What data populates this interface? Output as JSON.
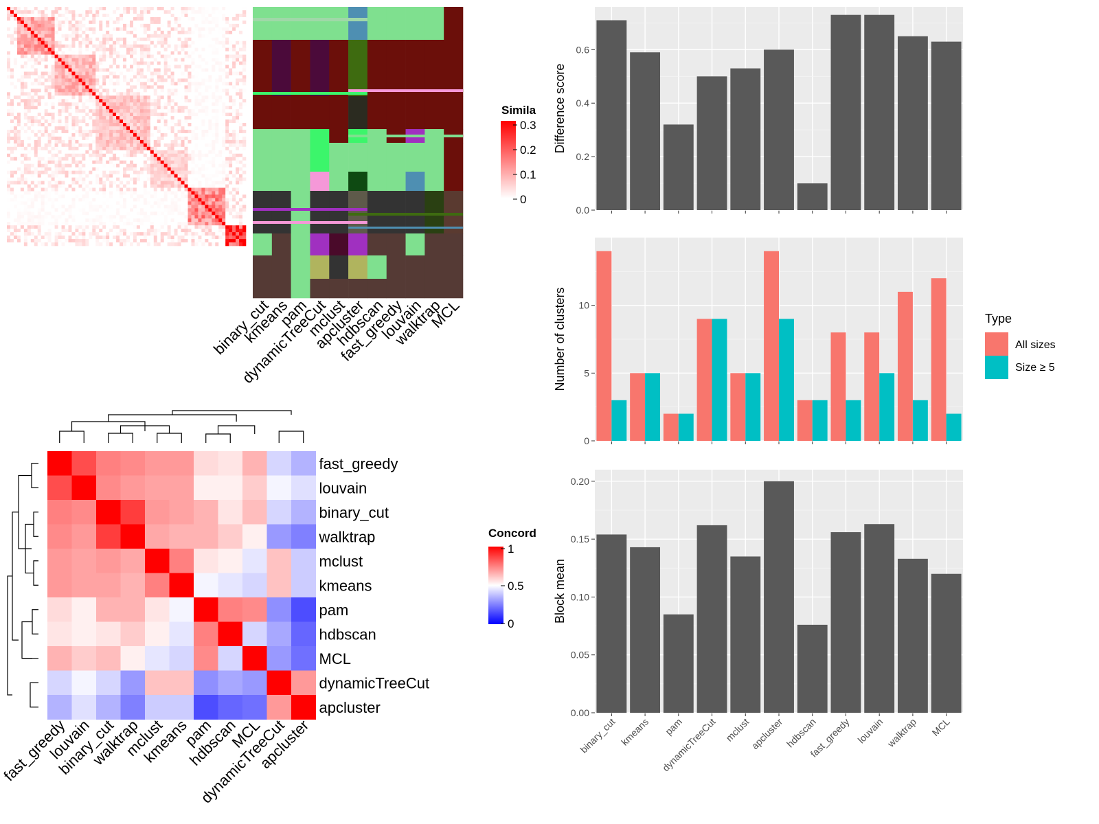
{
  "method_labels": [
    "binary_cut",
    "kmeans",
    "pam",
    "dynamicTreeCut",
    "mclust",
    "apcluster",
    "hdbscan",
    "fast_greedy",
    "louvain",
    "walktrap",
    "MCL"
  ],
  "similarity_legend": {
    "title": "Simila",
    "ticks": [
      "0.3",
      "0.2",
      "0.1",
      "0"
    ]
  },
  "concordance_legend": {
    "title": "Concord",
    "ticks": [
      "1",
      "0.5",
      "0"
    ]
  },
  "concordance_order": [
    "fast_greedy",
    "louvain",
    "binary_cut",
    "walktrap",
    "mclust",
    "kmeans",
    "pam",
    "hdbscan",
    "MCL",
    "dynamicTreeCut",
    "apcluster"
  ],
  "colors": {
    "bar": "#595959",
    "all_sizes": "#F8766D",
    "size_ge5": "#00BFC4",
    "panel_bg": "#EBEBEB"
  },
  "chart_data": [
    {
      "type": "bar",
      "categories": [
        "binary_cut",
        "kmeans",
        "pam",
        "dynamicTreeCut",
        "mclust",
        "apcluster",
        "hdbscan",
        "fast_greedy",
        "louvain",
        "walktrap",
        "MCL"
      ],
      "values": [
        0.71,
        0.59,
        0.32,
        0.5,
        0.53,
        0.6,
        0.1,
        0.73,
        0.73,
        0.65,
        0.63
      ],
      "xlabel": "",
      "ylabel": "Difference score",
      "ylim": [
        0,
        0.76
      ],
      "yticks": [
        "0.0",
        "0.2",
        "0.4",
        "0.6"
      ],
      "grid": true
    },
    {
      "type": "bar",
      "categories": [
        "binary_cut",
        "kmeans",
        "pam",
        "dynamicTreeCut",
        "mclust",
        "apcluster",
        "hdbscan",
        "fast_greedy",
        "louvain",
        "walktrap",
        "MCL"
      ],
      "series": [
        {
          "name": "All sizes",
          "values": [
            14,
            5,
            2,
            9,
            5,
            14,
            3,
            8,
            8,
            11,
            12
          ]
        },
        {
          "name": "Size ≥ 5",
          "values": [
            3,
            5,
            2,
            9,
            5,
            9,
            3,
            3,
            5,
            3,
            2
          ]
        }
      ],
      "xlabel": "",
      "ylabel": "Number of clusters",
      "ylim": [
        0,
        15
      ],
      "yticks": [
        "0",
        "5",
        "10"
      ],
      "legend_title": "Type",
      "legend_position": "right",
      "grid": true
    },
    {
      "type": "bar",
      "categories": [
        "binary_cut",
        "kmeans",
        "pam",
        "dynamicTreeCut",
        "mclust",
        "apcluster",
        "hdbscan",
        "fast_greedy",
        "louvain",
        "walktrap",
        "MCL"
      ],
      "values": [
        0.154,
        0.143,
        0.085,
        0.162,
        0.135,
        0.2,
        0.076,
        0.156,
        0.163,
        0.133,
        0.12
      ],
      "xlabel": "",
      "ylabel": "Block mean",
      "ylim": [
        0,
        0.21
      ],
      "yticks": [
        "0.00",
        "0.05",
        "0.10",
        "0.15",
        "0.20"
      ],
      "grid": true
    },
    {
      "type": "heatmap",
      "rows": [
        "fast_greedy",
        "louvain",
        "binary_cut",
        "walktrap",
        "mclust",
        "kmeans",
        "pam",
        "hdbscan",
        "MCL",
        "dynamicTreeCut",
        "apcluster"
      ],
      "cols": [
        "fast_greedy",
        "louvain",
        "binary_cut",
        "walktrap",
        "mclust",
        "kmeans",
        "pam",
        "hdbscan",
        "MCL",
        "dynamicTreeCut",
        "apcluster"
      ],
      "values": [
        [
          1.0,
          0.85,
          0.75,
          0.73,
          0.7,
          0.7,
          0.57,
          0.55,
          0.65,
          0.42,
          0.35
        ],
        [
          0.85,
          1.0,
          0.73,
          0.7,
          0.68,
          0.68,
          0.53,
          0.53,
          0.6,
          0.48,
          0.44
        ],
        [
          0.75,
          0.73,
          1.0,
          0.88,
          0.7,
          0.68,
          0.65,
          0.55,
          0.63,
          0.42,
          0.35
        ],
        [
          0.73,
          0.7,
          0.88,
          1.0,
          0.67,
          0.65,
          0.65,
          0.6,
          0.53,
          0.3,
          0.25
        ],
        [
          0.7,
          0.68,
          0.7,
          0.67,
          1.0,
          0.75,
          0.55,
          0.53,
          0.45,
          0.62,
          0.4
        ],
        [
          0.7,
          0.68,
          0.68,
          0.65,
          0.75,
          1.0,
          0.48,
          0.45,
          0.42,
          0.62,
          0.4
        ],
        [
          0.57,
          0.53,
          0.65,
          0.65,
          0.55,
          0.48,
          1.0,
          0.75,
          0.73,
          0.28,
          0.15
        ],
        [
          0.55,
          0.53,
          0.55,
          0.6,
          0.53,
          0.45,
          0.75,
          1.0,
          0.42,
          0.33,
          0.2
        ],
        [
          0.65,
          0.6,
          0.63,
          0.53,
          0.45,
          0.42,
          0.73,
          0.42,
          1.0,
          0.3,
          0.22
        ],
        [
          0.42,
          0.48,
          0.42,
          0.3,
          0.62,
          0.62,
          0.28,
          0.33,
          0.3,
          1.0,
          0.7
        ],
        [
          0.35,
          0.44,
          0.35,
          0.25,
          0.4,
          0.4,
          0.15,
          0.2,
          0.22,
          0.7,
          1.0
        ]
      ],
      "scale": "blue-white-red",
      "range": [
        0,
        1
      ]
    }
  ]
}
